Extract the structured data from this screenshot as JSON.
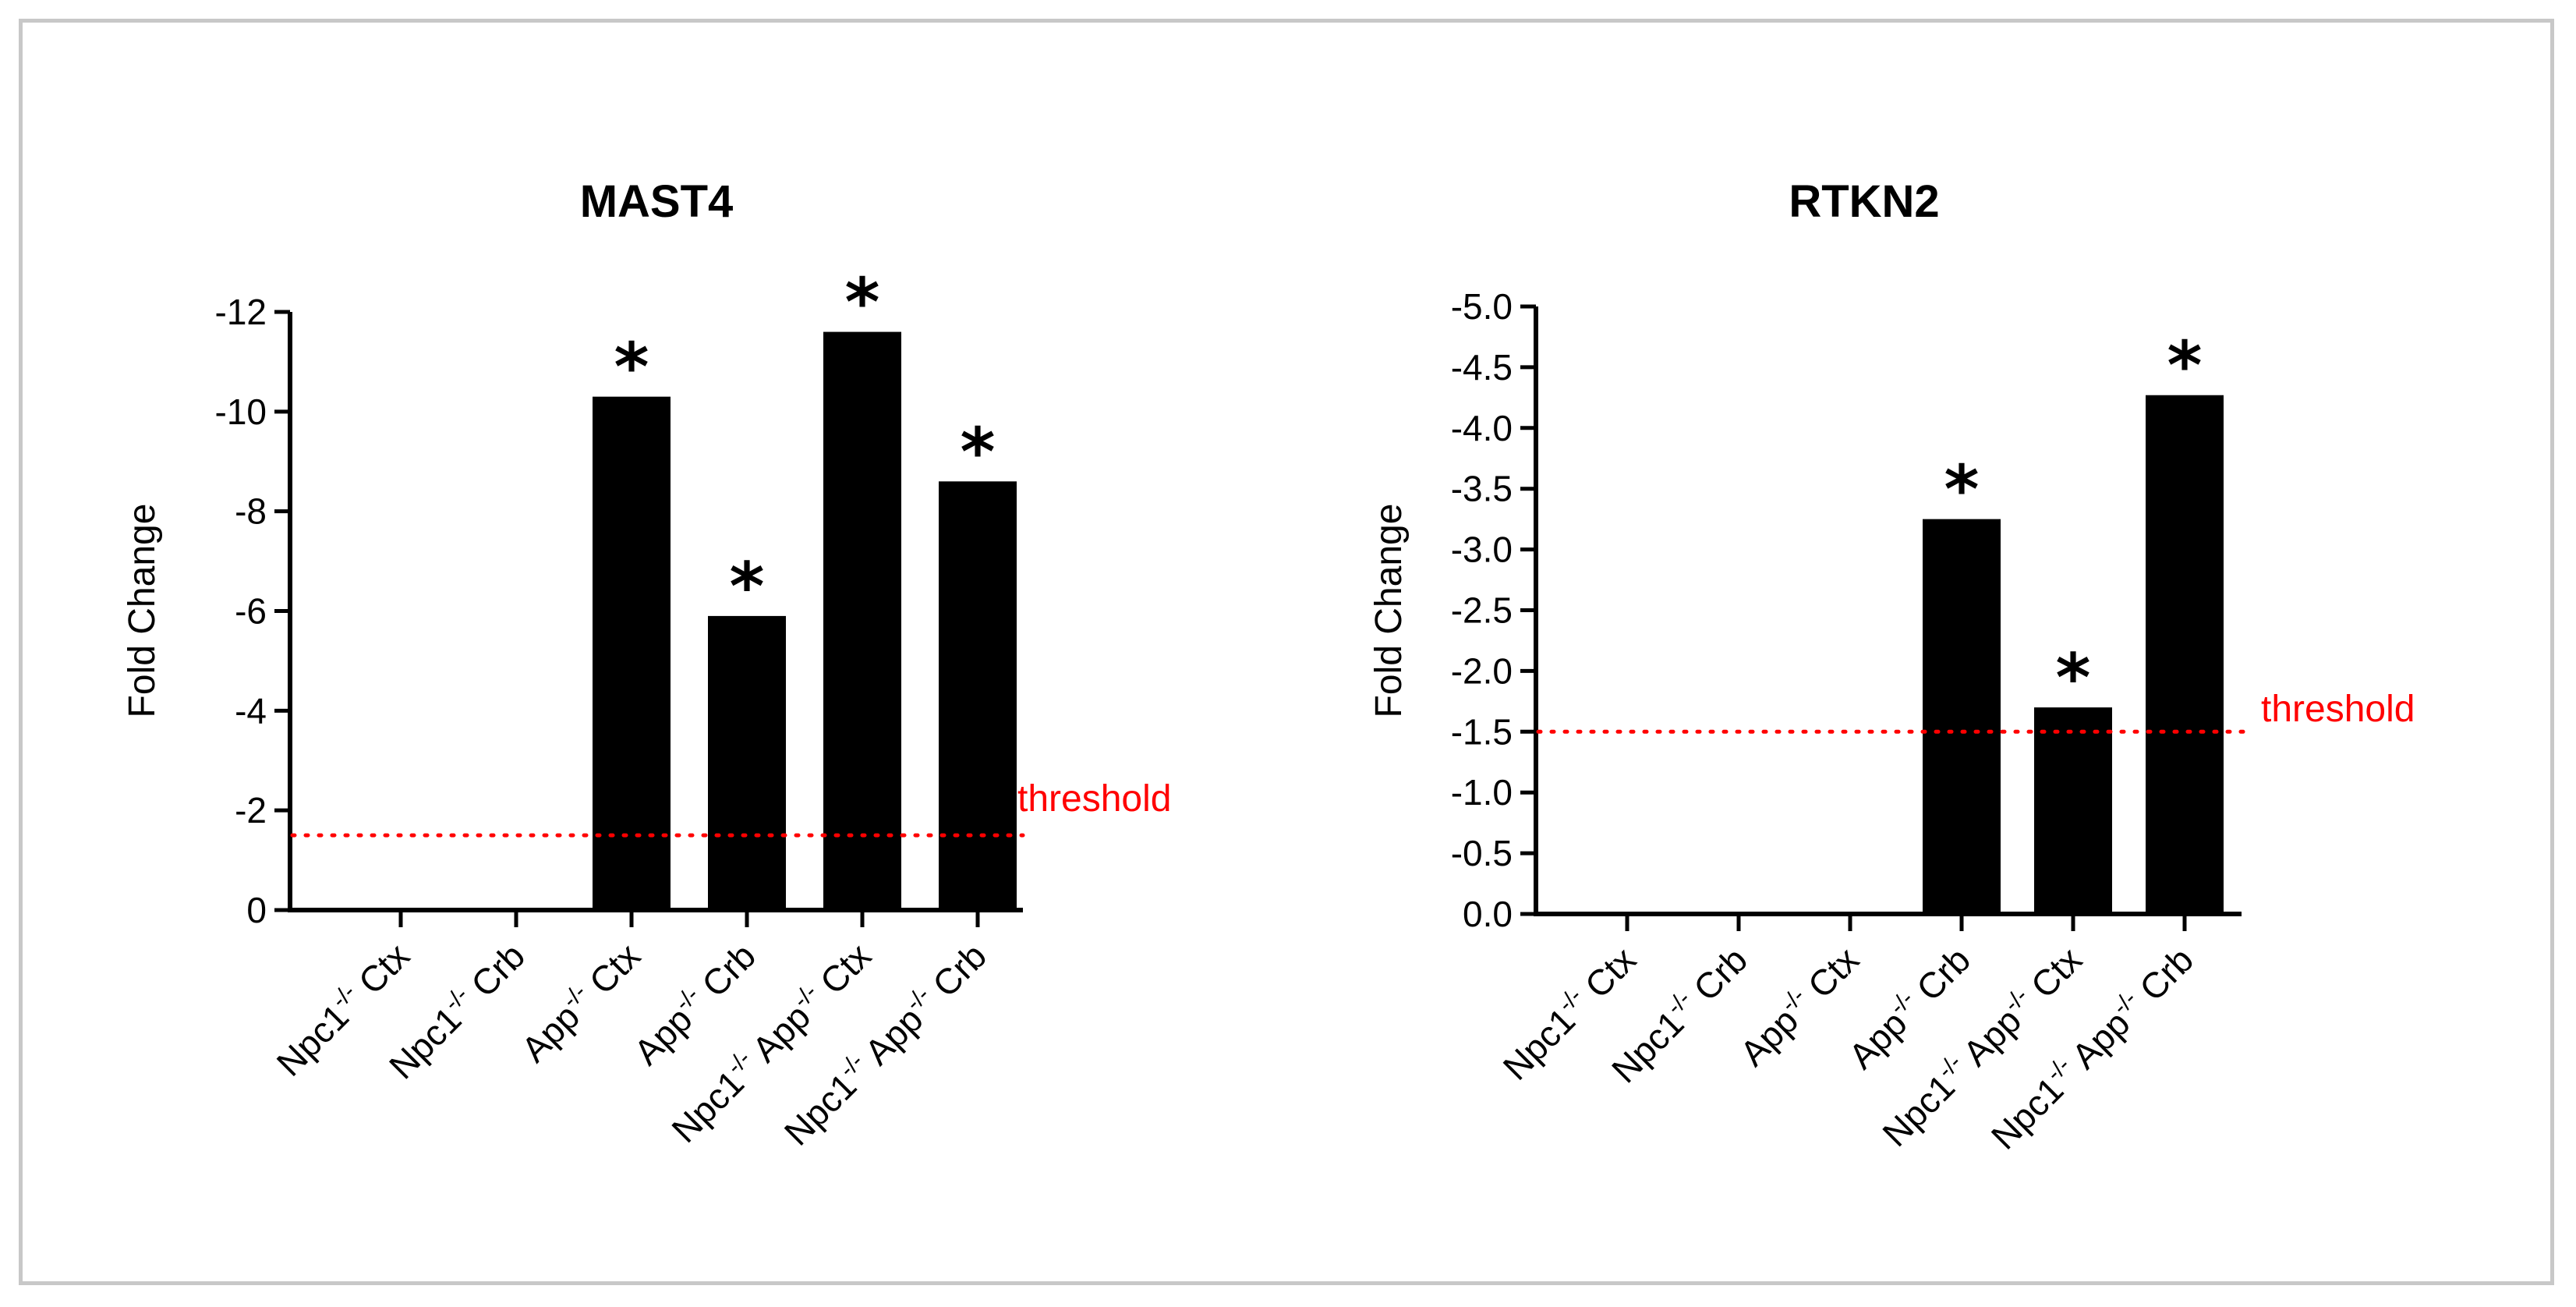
{
  "colors": {
    "bar": "#000000",
    "axis": "#000000",
    "threshold": "#ff0000",
    "frame": "#c8c8c8"
  },
  "chart_data": [
    {
      "type": "bar",
      "title": "MAST4",
      "xlabel": "",
      "ylabel": "Fold Change",
      "ylim": [
        0,
        -12
      ],
      "yticks": [
        "-12",
        "-10",
        "-8",
        "-6",
        "-4",
        "-2",
        "0"
      ],
      "ytick_values": [
        -12,
        -10,
        -8,
        -6,
        -4,
        -2,
        0
      ],
      "categories": [
        {
          "gene": "Npc1",
          "sup": "-/-",
          "tissue": " Ctx"
        },
        {
          "gene": "Npc1",
          "sup": "-/-",
          "tissue": " Crb"
        },
        {
          "gene": "App",
          "sup": "-/-",
          "tissue": " Ctx"
        },
        {
          "gene": "App",
          "sup": "-/-",
          "tissue": " Crb"
        },
        {
          "gene": "Npc1",
          "sup": "-/-",
          "gene2": " App",
          "sup2": "-/-",
          "tissue": " Ctx"
        },
        {
          "gene": "Npc1",
          "sup": "-/-",
          "gene2": " App",
          "sup2": "-/-",
          "tissue": " Crb"
        }
      ],
      "values": [
        0,
        0,
        -10.3,
        -5.9,
        -11.6,
        -8.6
      ],
      "significance": [
        "",
        "",
        "*",
        "*",
        "*",
        "*"
      ],
      "threshold": {
        "value": -1.5,
        "label": "threshold"
      }
    },
    {
      "type": "bar",
      "title": "RTKN2",
      "xlabel": "",
      "ylabel": "Fold  Change",
      "ylim": [
        0,
        -5.0
      ],
      "yticks": [
        "-5.0",
        "-4.5",
        "-4.0",
        "-3.5",
        "-3.0",
        "-2.5",
        "-2.0",
        "-1.5",
        "-1.0",
        "-0.5",
        "0.0"
      ],
      "ytick_values": [
        -5.0,
        -4.5,
        -4.0,
        -3.5,
        -3.0,
        -2.5,
        -2.0,
        -1.5,
        -1.0,
        -0.5,
        0.0
      ],
      "categories": [
        {
          "gene": "Npc1",
          "sup": "-/-",
          "tissue": " Ctx"
        },
        {
          "gene": "Npc1",
          "sup": "-/-",
          "tissue": " Crb"
        },
        {
          "gene": "App",
          "sup": "-/-",
          "tissue": " Ctx"
        },
        {
          "gene": "App",
          "sup": "-/-",
          "tissue": " Crb"
        },
        {
          "gene": "Npc1",
          "sup": "-/-",
          "gene2": " App",
          "sup2": "-/-",
          "tissue": " Ctx"
        },
        {
          "gene": "Npc1",
          "sup": "-/-",
          "gene2": " App",
          "sup2": "-/-",
          "tissue": " Crb"
        }
      ],
      "values": [
        0,
        0,
        0,
        -3.25,
        -1.7,
        -4.27
      ],
      "significance": [
        "",
        "",
        "",
        "*",
        "*",
        "*"
      ],
      "threshold": {
        "value": -1.5,
        "label": "threshold"
      }
    }
  ]
}
